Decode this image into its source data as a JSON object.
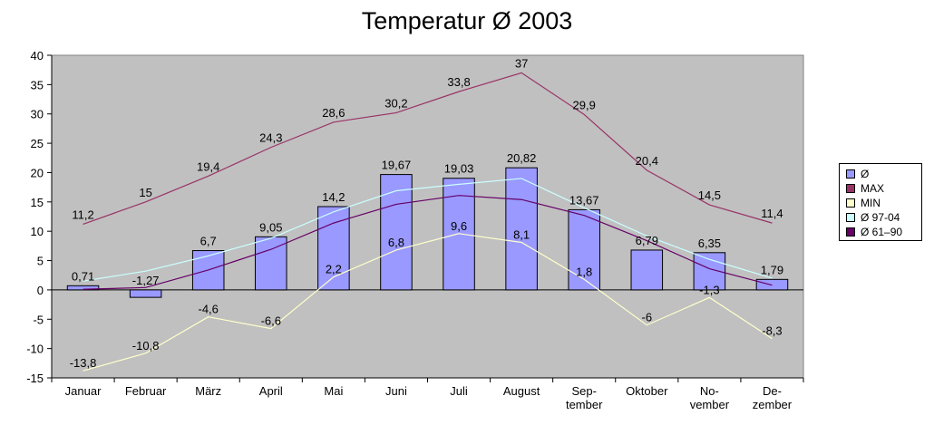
{
  "chart_data": {
    "type": "bar",
    "title": "Temperatur Ø 2003",
    "categories": [
      [
        "Januar"
      ],
      [
        "Februar"
      ],
      [
        "März"
      ],
      [
        "April"
      ],
      [
        "Mai"
      ],
      [
        "Juni"
      ],
      [
        "Juli"
      ],
      [
        "August"
      ],
      [
        "Sep-",
        "tember"
      ],
      [
        "Oktober"
      ],
      [
        "No-",
        "vember"
      ],
      [
        "De-",
        "zember"
      ]
    ],
    "ylim": [
      -15,
      40
    ],
    "yticks": [
      -15,
      -10,
      -5,
      0,
      5,
      10,
      15,
      20,
      25,
      30,
      35,
      40
    ],
    "grid": false,
    "legend_position": "right",
    "plot_background": "#c0c0c0",
    "series": [
      {
        "name": "Ø",
        "type": "bar",
        "color": "#9999ff",
        "values": [
          0.71,
          -1.27,
          6.7,
          9.05,
          14.2,
          19.67,
          19.03,
          20.82,
          13.67,
          6.79,
          6.35,
          1.79
        ],
        "labels": [
          "0,71",
          "-1,27",
          "6,7",
          "9,05",
          "14,2",
          "19,67",
          "19,03",
          "20,82",
          "13,67",
          "6,79",
          "6,35",
          "1,79"
        ]
      },
      {
        "name": "MAX",
        "type": "line",
        "color": "#993366",
        "values": [
          11.2,
          15,
          19.4,
          24.3,
          28.6,
          30.2,
          33.8,
          37,
          29.9,
          20.4,
          14.5,
          11.4
        ],
        "labels": [
          "11,2",
          "15",
          "19,4",
          "24,3",
          "28,6",
          "30,2",
          "33,8",
          "37",
          "29,9",
          "20,4",
          "14,5",
          "11,4"
        ]
      },
      {
        "name": "MIN",
        "type": "line",
        "color": "#ffffcc",
        "values": [
          -13.8,
          -10.8,
          -4.6,
          -6.6,
          2.2,
          6.8,
          9.6,
          8.1,
          1.8,
          -6,
          -1.3,
          -8.3
        ],
        "labels": [
          "-13,8",
          "-10,8",
          "-4,6",
          "-6,6",
          "2,2",
          "6,8",
          "9,6",
          "8,1",
          "1,8",
          "-6",
          "-1,3",
          "-8,3"
        ]
      },
      {
        "name": "Ø 97-04",
        "type": "line",
        "color": "#ccffff",
        "values": [
          1.5,
          3.2,
          5.8,
          8.8,
          13.3,
          16.9,
          18.0,
          19.0,
          14.0,
          9.2,
          5.2,
          2.0
        ],
        "labels": []
      },
      {
        "name": "Ø 61–90",
        "type": "line",
        "color": "#660066",
        "values": [
          0.1,
          0.4,
          3.4,
          6.9,
          11.4,
          14.6,
          16.1,
          15.4,
          12.7,
          8.4,
          3.6,
          0.8
        ],
        "labels": []
      }
    ]
  }
}
